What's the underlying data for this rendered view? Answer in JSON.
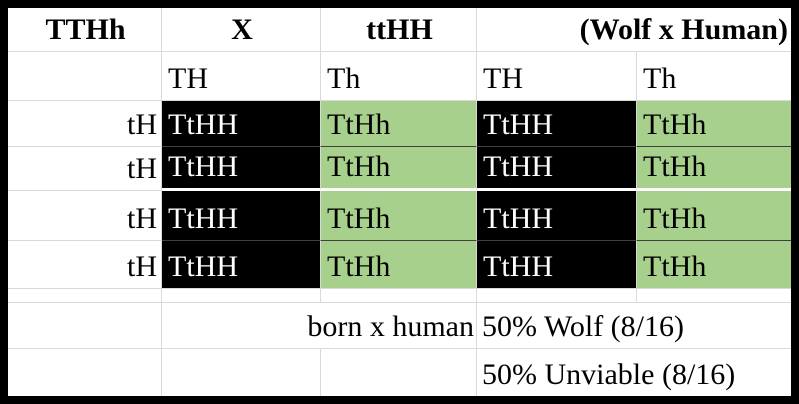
{
  "colors": {
    "green_fill": "#a8d08d",
    "black_fill": "#000000",
    "gridline": "#d9d9d9",
    "dark_separator": "#404040",
    "white_separator": "#ffffff",
    "outer_border": "#000000"
  },
  "header": {
    "parent1": "TTHh",
    "cross_symbol": "X",
    "parent2": "ttHH",
    "note": "(Wolf x Human)"
  },
  "top_gametes": [
    "TH",
    "Th",
    "TH",
    "Th"
  ],
  "side_gametes": [
    "tH",
    "tH",
    "tH",
    "tH"
  ],
  "punnett_rows": [
    [
      "TtHH",
      "TtHh",
      "TtHH",
      "TtHh"
    ],
    [
      "TtHH",
      "TtHh",
      "TtHH",
      "TtHh"
    ],
    [
      "TtHH",
      "TtHh",
      "TtHH",
      "TtHh"
    ],
    [
      "TtHH",
      "TtHh",
      "TtHH",
      "TtHh"
    ]
  ],
  "summary": {
    "cross_note": "born x human",
    "result_wolf": "50% Wolf (8/16)",
    "result_unviable": "50% Unviable (8/16)"
  }
}
